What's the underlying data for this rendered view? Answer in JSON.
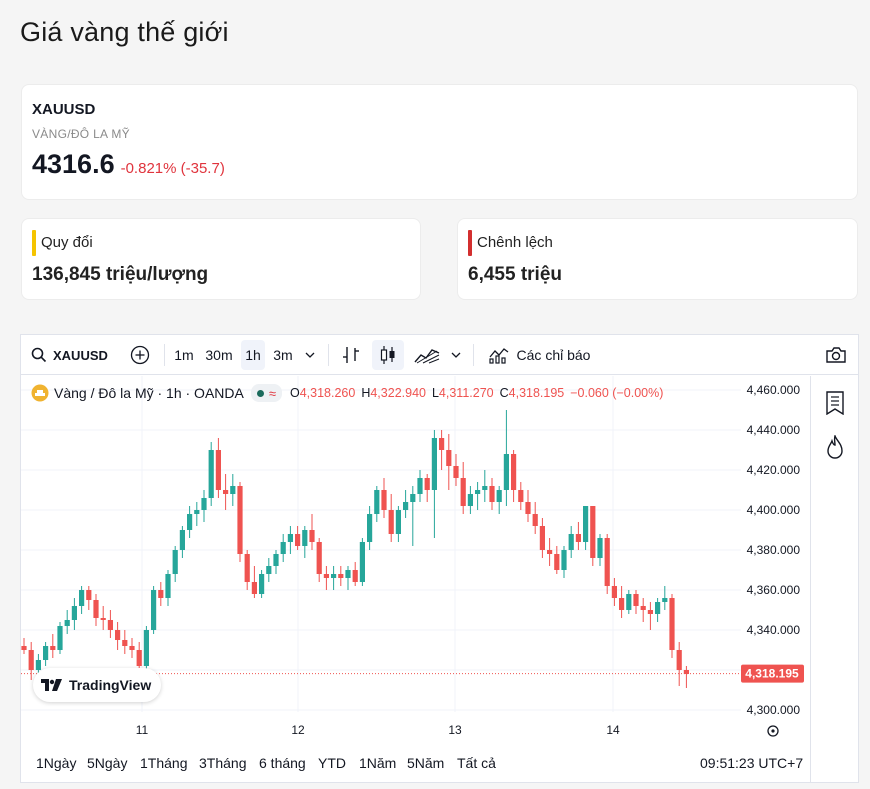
{
  "page_title": "Giá vàng thế giới",
  "quote": {
    "symbol": "XAUUSD",
    "subtitle": "VÀNG/ĐÔ LA MỸ",
    "price": "4316.6",
    "change": "-0.821% (-35.7)",
    "change_color": "#e0343d"
  },
  "cards": [
    {
      "label": "Quy đổi",
      "value": "136,845 triệu/lượng",
      "bar_color": "#f5c400"
    },
    {
      "label": "Chênh lệch",
      "value": "6,455 triệu",
      "bar_color": "#d32f2f"
    }
  ],
  "toolbar": {
    "symbol": "XAUUSD",
    "intervals": [
      "1m",
      "30m",
      "1h",
      "3m"
    ],
    "active_interval": "1h",
    "indicators_label": "Các chỉ báo",
    "icons": [
      "search-icon",
      "add-symbol-icon",
      "chevron-down-icon",
      "bar-style-icon",
      "candle-style-icon",
      "area-style-icon",
      "indicators-icon",
      "camera-icon"
    ]
  },
  "legend": {
    "title": "Vàng / Đô la Mỹ · 1h · OANDA",
    "o_label": "O",
    "o": "4,318.260",
    "h_label": "H",
    "h": "4,322.940",
    "l_label": "L",
    "l": "4,311.270",
    "c_label": "C",
    "c": "4,318.195",
    "change": "−0.060 (−0.00%)"
  },
  "side_icons": [
    "watchlist-icon",
    "hot-list-icon"
  ],
  "tradingview_label": "TradingView",
  "bottom": {
    "ranges": [
      "1Ngày",
      "5Ngày",
      "1Tháng",
      "3Tháng",
      "6 tháng",
      "YTD",
      "1Năm",
      "5Năm",
      "Tất cả"
    ],
    "time": "09:51:23 UTC+7"
  },
  "colors": {
    "up": "#26a69a",
    "down": "#ef5350",
    "last_price_bg": "#ef5350",
    "accent_yellow": "#f5c400"
  },
  "chart_data": {
    "type": "candlestick",
    "interval": "1h",
    "y_ticks": [
      "4,460.000",
      "4,440.000",
      "4,420.000",
      "4,400.000",
      "4,380.000",
      "4,360.000",
      "4,340.000",
      "4,300.000"
    ],
    "ylim": [
      4300,
      4460
    ],
    "x_ticks": [
      "11",
      "12",
      "13",
      "14"
    ],
    "last_price_label": "4,318.195",
    "last_price": 4318.195,
    "candles": [
      [
        4332,
        4336,
        4328,
        4330
      ],
      [
        4330,
        4334,
        4315,
        4320
      ],
      [
        4320,
        4328,
        4316,
        4325
      ],
      [
        4325,
        4334,
        4322,
        4332
      ],
      [
        4332,
        4338,
        4326,
        4330
      ],
      [
        4330,
        4344,
        4328,
        4342
      ],
      [
        4342,
        4350,
        4338,
        4345
      ],
      [
        4345,
        4356,
        4340,
        4352
      ],
      [
        4352,
        4362,
        4348,
        4360
      ],
      [
        4360,
        4362,
        4350,
        4355
      ],
      [
        4355,
        4358,
        4342,
        4346
      ],
      [
        4346,
        4352,
        4340,
        4345
      ],
      [
        4345,
        4350,
        4336,
        4340
      ],
      [
        4340,
        4344,
        4330,
        4335
      ],
      [
        4335,
        4340,
        4328,
        4332
      ],
      [
        4332,
        4336,
        4326,
        4330
      ],
      [
        4330,
        4334,
        4318,
        4322
      ],
      [
        4322,
        4342,
        4320,
        4340
      ],
      [
        4340,
        4362,
        4338,
        4360
      ],
      [
        4360,
        4364,
        4352,
        4356
      ],
      [
        4356,
        4370,
        4352,
        4368
      ],
      [
        4368,
        4382,
        4364,
        4380
      ],
      [
        4380,
        4392,
        4376,
        4390
      ],
      [
        4390,
        4402,
        4386,
        4398
      ],
      [
        4398,
        4404,
        4392,
        4400
      ],
      [
        4400,
        4410,
        4394,
        4406
      ],
      [
        4406,
        4434,
        4402,
        4430
      ],
      [
        4430,
        4436,
        4406,
        4410
      ],
      [
        4410,
        4418,
        4400,
        4408
      ],
      [
        4408,
        4418,
        4402,
        4412
      ],
      [
        4412,
        4414,
        4374,
        4378
      ],
      [
        4378,
        4380,
        4360,
        4364
      ],
      [
        4364,
        4372,
        4356,
        4358
      ],
      [
        4358,
        4370,
        4356,
        4368
      ],
      [
        4368,
        4376,
        4364,
        4372
      ],
      [
        4372,
        4380,
        4368,
        4378
      ],
      [
        4378,
        4388,
        4374,
        4384
      ],
      [
        4384,
        4392,
        4378,
        4388
      ],
      [
        4388,
        4392,
        4380,
        4382
      ],
      [
        4382,
        4392,
        4376,
        4390
      ],
      [
        4390,
        4398,
        4380,
        4384
      ],
      [
        4384,
        4386,
        4364,
        4368
      ],
      [
        4368,
        4372,
        4360,
        4366
      ],
      [
        4366,
        4372,
        4360,
        4368
      ],
      [
        4368,
        4372,
        4362,
        4366
      ],
      [
        4366,
        4372,
        4360,
        4370
      ],
      [
        4370,
        4374,
        4362,
        4364
      ],
      [
        4364,
        4386,
        4362,
        4384
      ],
      [
        4384,
        4402,
        4380,
        4398
      ],
      [
        4398,
        4412,
        4394,
        4410
      ],
      [
        4410,
        4416,
        4396,
        4400
      ],
      [
        4400,
        4408,
        4384,
        4388
      ],
      [
        4388,
        4402,
        4384,
        4400
      ],
      [
        4400,
        4410,
        4396,
        4404
      ],
      [
        4404,
        4412,
        4382,
        4408
      ],
      [
        4408,
        4420,
        4404,
        4416
      ],
      [
        4416,
        4418,
        4404,
        4410
      ],
      [
        4410,
        4440,
        4386,
        4436
      ],
      [
        4436,
        4440,
        4420,
        4430
      ],
      [
        4430,
        4438,
        4410,
        4422
      ],
      [
        4422,
        4428,
        4412,
        4416
      ],
      [
        4416,
        4424,
        4398,
        4402
      ],
      [
        4402,
        4412,
        4398,
        4408
      ],
      [
        4408,
        4414,
        4400,
        4410
      ],
      [
        4410,
        4420,
        4404,
        4412
      ],
      [
        4412,
        4416,
        4400,
        4404
      ],
      [
        4404,
        4412,
        4398,
        4410
      ],
      [
        4410,
        4450,
        4402,
        4428
      ],
      [
        4428,
        4430,
        4404,
        4410
      ],
      [
        4410,
        4414,
        4400,
        4404
      ],
      [
        4404,
        4410,
        4394,
        4398
      ],
      [
        4398,
        4404,
        4388,
        4392
      ],
      [
        4392,
        4396,
        4376,
        4380
      ],
      [
        4380,
        4386,
        4372,
        4378
      ],
      [
        4378,
        4382,
        4368,
        4370
      ],
      [
        4370,
        4382,
        4366,
        4380
      ],
      [
        4380,
        4392,
        4376,
        4388
      ],
      [
        4388,
        4394,
        4380,
        4384
      ],
      [
        4384,
        4402,
        4380,
        4402
      ],
      [
        4402,
        4402,
        4372,
        4376
      ],
      [
        4376,
        4388,
        4372,
        4386
      ],
      [
        4386,
        4388,
        4358,
        4362
      ],
      [
        4362,
        4366,
        4352,
        4356
      ],
      [
        4356,
        4362,
        4346,
        4350
      ],
      [
        4350,
        4360,
        4348,
        4358
      ],
      [
        4358,
        4360,
        4348,
        4352
      ],
      [
        4352,
        4356,
        4344,
        4350
      ],
      [
        4350,
        4354,
        4340,
        4348
      ],
      [
        4348,
        4356,
        4344,
        4354
      ],
      [
        4354,
        4362,
        4350,
        4356
      ],
      [
        4356,
        4358,
        4326,
        4330
      ],
      [
        4330,
        4334,
        4312,
        4320
      ],
      [
        4320,
        4322,
        4311,
        4318
      ]
    ]
  }
}
